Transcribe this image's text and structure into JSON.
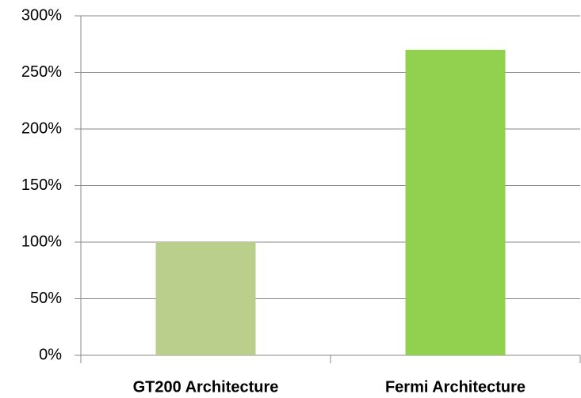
{
  "chart_data": {
    "type": "bar",
    "categories": [
      "GT200 Architecture",
      "Fermi Architecture"
    ],
    "values": [
      100,
      270
    ],
    "colors": [
      "#b9cf8b",
      "#92d050"
    ],
    "ylim": [
      0,
      300
    ],
    "yticks": [
      {
        "value": 0,
        "label": "0%"
      },
      {
        "value": 50,
        "label": "50%"
      },
      {
        "value": 100,
        "label": "100%"
      },
      {
        "value": 150,
        "label": "150%"
      },
      {
        "value": 200,
        "label": "200%"
      },
      {
        "value": 250,
        "label": "250%"
      },
      {
        "value": 300,
        "label": "300%"
      }
    ],
    "grid": true
  }
}
